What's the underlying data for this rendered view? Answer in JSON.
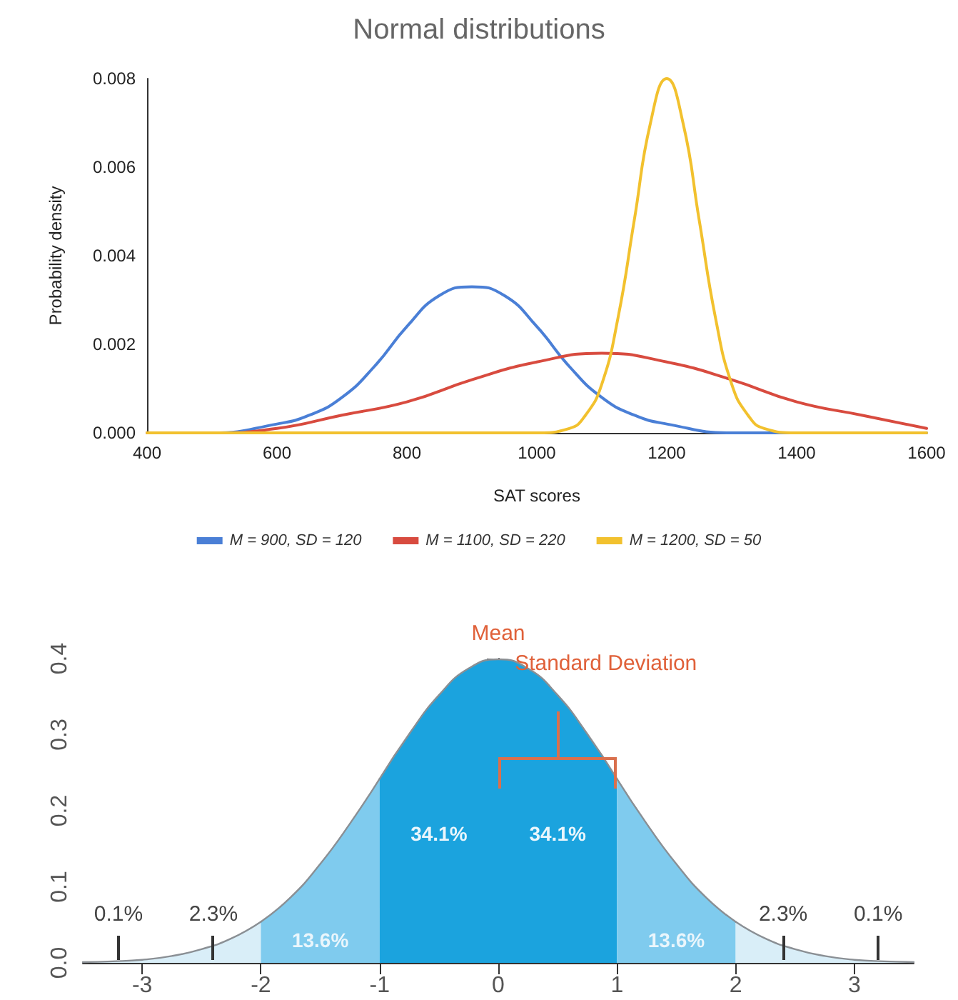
{
  "chart_data": [
    {
      "type": "line",
      "title": "Normal distributions",
      "xlabel": "SAT scores",
      "ylabel": "Probability density",
      "xlim": [
        400,
        1600
      ],
      "xticks": [
        400,
        600,
        800,
        1000,
        1200,
        1400,
        1600
      ],
      "ylim": [
        0,
        0.008
      ],
      "yticks": [
        {
          "value": 0,
          "label": "0.000"
        },
        {
          "value": 0.002,
          "label": "0.002"
        },
        {
          "value": 0.004,
          "label": "0.004"
        },
        {
          "value": 0.006,
          "label": "0.006"
        },
        {
          "value": 0.008,
          "label": "0.008"
        }
      ],
      "grid": false,
      "legend": "bottom",
      "marker": "none",
      "line_style": "solid",
      "series": [
        {
          "name": "M = 900, SD = 120",
          "color": "#4a7fd6",
          "x": [
            400,
            500,
            600,
            650,
            700,
            750,
            800,
            850,
            900,
            950,
            1000,
            1050,
            1100,
            1150,
            1200,
            1300,
            1400,
            1600
          ],
          "values": [
            0,
            0,
            0.0002,
            0.0004,
            0.0008,
            0.0015,
            0.0024,
            0.0031,
            0.0033,
            0.0031,
            0.0024,
            0.0015,
            0.0008,
            0.0004,
            0.0002,
            0,
            0,
            0
          ]
        },
        {
          "name": "M = 1100, SD = 220",
          "color": "#d84b3f",
          "x": [
            400,
            500,
            600,
            700,
            800,
            900,
            1000,
            1100,
            1200,
            1300,
            1400,
            1500,
            1600
          ],
          "values": [
            0,
            0,
            0.0001,
            0.0004,
            0.0007,
            0.0012,
            0.0016,
            0.0018,
            0.0016,
            0.0012,
            0.0007,
            0.0004,
            0.0001
          ]
        },
        {
          "name": "M = 1200, SD = 50",
          "color": "#f2c12e",
          "x": [
            400,
            1000,
            1050,
            1075,
            1100,
            1125,
            1150,
            1175,
            1200,
            1225,
            1250,
            1275,
            1300,
            1325,
            1350,
            1400,
            1600
          ],
          "values": [
            0,
            0,
            0.0001,
            0.0004,
            0.0011,
            0.0026,
            0.0048,
            0.007,
            0.008,
            0.007,
            0.0048,
            0.0026,
            0.0011,
            0.0004,
            0.0001,
            0,
            0
          ]
        }
      ]
    },
    {
      "type": "area",
      "xlim": [
        -3.5,
        3.5
      ],
      "xticks": [
        -3,
        -2,
        -1,
        0,
        1,
        2,
        3
      ],
      "ylim": [
        0,
        0.4
      ],
      "yticks": [
        {
          "value": 0,
          "label": "0.0"
        },
        {
          "value": 0.1,
          "label": "0.1"
        },
        {
          "value": 0.2,
          "label": "0.2"
        },
        {
          "value": 0.3,
          "label": "0.3"
        },
        {
          "value": 0.4,
          "label": "0.4"
        }
      ],
      "marker": "none",
      "line_style": "solid",
      "annotations": [
        {
          "text": "Mean",
          "x": 0,
          "y": 0.4
        },
        "Standard Deviation",
        "34.1%",
        "34.1%",
        "13.6%",
        "13.6%",
        "2.3%",
        "2.3%",
        "0.1%",
        "0.1%"
      ],
      "series": [
        {
          "color": "#d9eef8",
          "x": [
            -3.5,
            -3.25,
            -3,
            -2.75,
            -2.5,
            -2.25,
            -2
          ],
          "values": [
            0.001,
            0.002,
            0.004,
            0.009,
            0.018,
            0.032,
            0.054
          ]
        },
        {
          "color": "#7fcbee",
          "x": [
            -2,
            -1.75,
            -1.5,
            -1.25,
            -1
          ],
          "values": [
            0.054,
            0.086,
            0.13,
            0.183,
            0.242
          ]
        },
        {
          "color": "#1ba3de",
          "x": [
            -1,
            -0.75,
            -0.5,
            -0.25,
            0,
            0.25,
            0.5,
            0.75,
            1
          ],
          "values": [
            0.242,
            0.301,
            0.352,
            0.387,
            0.399,
            0.387,
            0.352,
            0.301,
            0.242
          ]
        },
        {
          "color": "#7fcbee",
          "x": [
            1,
            1.25,
            1.5,
            1.75,
            2
          ],
          "values": [
            0.242,
            0.183,
            0.13,
            0.086,
            0.054
          ]
        },
        {
          "color": "#d9eef8",
          "x": [
            2,
            2.25,
            2.5,
            2.75,
            3,
            3.25,
            3.5
          ],
          "values": [
            0.054,
            0.032,
            0.018,
            0.009,
            0.004,
            0.002,
            0.001
          ]
        }
      ]
    }
  ]
}
